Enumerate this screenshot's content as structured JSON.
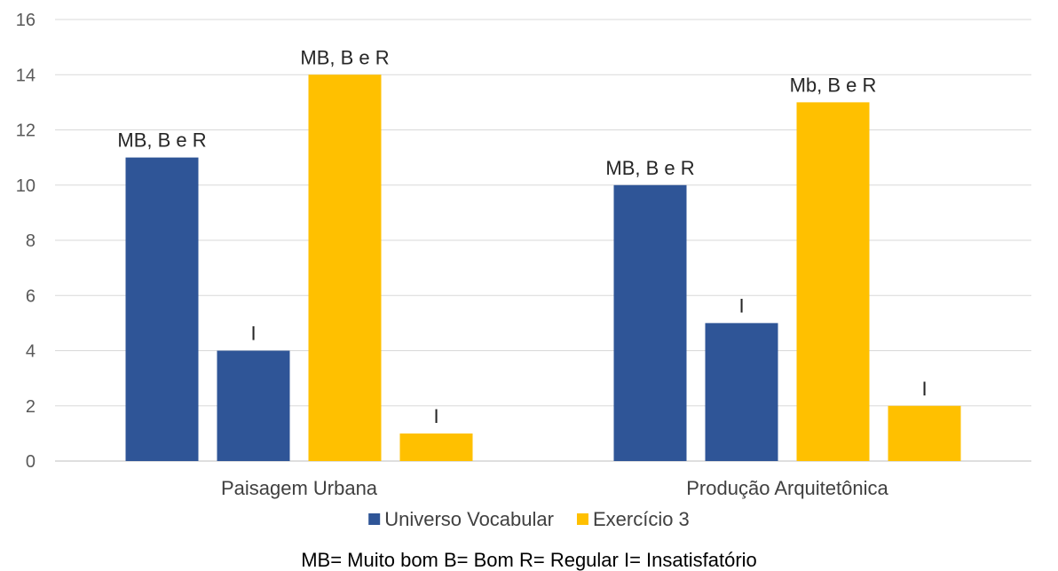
{
  "chart_data": {
    "type": "bar",
    "categories": [
      "Paisagem Urbana",
      "Produção Arquitetônica"
    ],
    "ylim": [
      0,
      16
    ],
    "yticks": [
      0,
      2,
      4,
      6,
      8,
      10,
      12,
      14,
      16
    ],
    "grid": true,
    "legend_position": "bottom",
    "bars": [
      {
        "category": "Paisagem Urbana",
        "series": "Universo Vocabular",
        "value": 11,
        "label": "MB, B e R"
      },
      {
        "category": "Paisagem Urbana",
        "series": "Universo Vocabular",
        "value": 4,
        "label": "I"
      },
      {
        "category": "Paisagem Urbana",
        "series": "Exercício 3",
        "value": 14,
        "label": "MB, B e R"
      },
      {
        "category": "Paisagem Urbana",
        "series": "Exercício 3",
        "value": 1,
        "label": "I"
      },
      {
        "category": "Produção Arquitetônica",
        "series": "Universo Vocabular",
        "value": 10,
        "label": "MB, B e R"
      },
      {
        "category": "Produção Arquitetônica",
        "series": "Universo Vocabular",
        "value": 5,
        "label": "I"
      },
      {
        "category": "Produção Arquitetônica",
        "series": "Exercício 3",
        "value": 13,
        "label": "Mb, B e R"
      },
      {
        "category": "Produção Arquitetônica",
        "series": "Exercício 3",
        "value": 2,
        "label": "I"
      }
    ],
    "series": [
      {
        "name": "Universo Vocabular",
        "color": "#2F5597"
      },
      {
        "name": "Exercício 3",
        "color": "#FFC000"
      }
    ],
    "footnote": "MB= Muito bom  B= Bom  R= Regular  I= Insatisfatório"
  }
}
